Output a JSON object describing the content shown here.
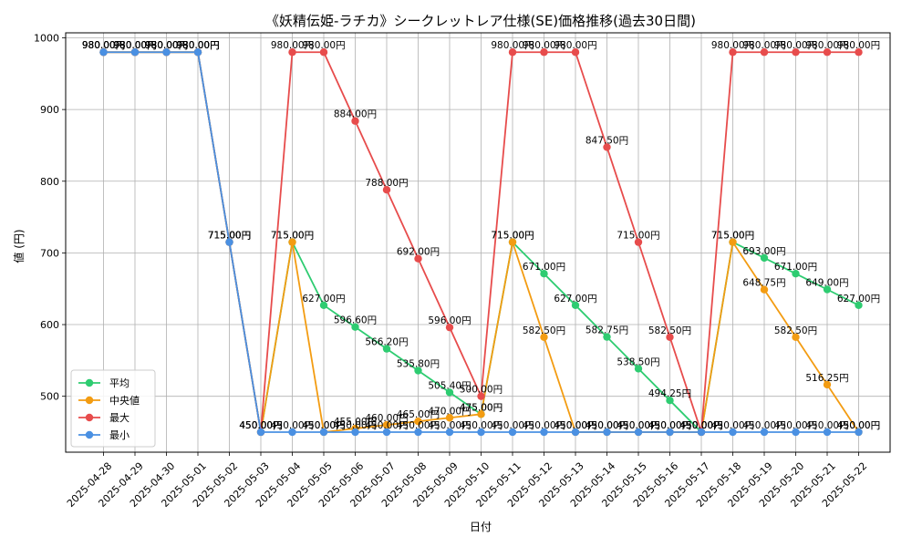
{
  "chart_data": {
    "type": "line",
    "title": "《妖精伝姫-ラチカ》シークレットレア仕様(SE)価格推移(過去30日間)",
    "xlabel": "日付",
    "ylabel": "値 (円)",
    "ylim": [
      422,
      1007
    ],
    "yticks": [
      500,
      600,
      700,
      800,
      900,
      1000
    ],
    "grid": true,
    "legend_position": "lower-left",
    "value_suffix": "円",
    "categories": [
      "2025-04-28",
      "2025-04-29",
      "2025-04-30",
      "2025-05-01",
      "2025-05-02",
      "2025-05-03",
      "2025-05-04",
      "2025-05-05",
      "2025-05-06",
      "2025-05-07",
      "2025-05-08",
      "2025-05-09",
      "2025-05-10",
      "2025-05-11",
      "2025-05-12",
      "2025-05-13",
      "2025-05-14",
      "2025-05-15",
      "2025-05-16",
      "2025-05-17",
      "2025-05-18",
      "2025-05-19",
      "2025-05-20",
      "2025-05-21",
      "2025-05-22"
    ],
    "series": [
      {
        "name": "平均",
        "color": "#2ecc71",
        "values": [
          980,
          980,
          980,
          980,
          715,
          450,
          715,
          627,
          596.6,
          566.2,
          535.8,
          505.4,
          475,
          715,
          671,
          627,
          582.75,
          538.5,
          494.25,
          450,
          715,
          693,
          671,
          649,
          627
        ]
      },
      {
        "name": "中央値",
        "color": "#f39c12",
        "values": [
          980,
          980,
          980,
          980,
          715,
          450,
          715,
          450,
          455,
          460,
          465,
          470,
          475,
          715,
          582.5,
          450,
          450,
          450,
          450,
          450,
          715,
          648.75,
          582.5,
          516.25,
          450
        ]
      },
      {
        "name": "最大",
        "color": "#e74c4c",
        "values": [
          980,
          980,
          980,
          980,
          715,
          450,
          980,
          980,
          884,
          788,
          692,
          596,
          500,
          980,
          980,
          980,
          847.5,
          715,
          582.5,
          450,
          980,
          980,
          980,
          980,
          980
        ]
      },
      {
        "name": "最小",
        "color": "#4a90e2",
        "values": [
          980,
          980,
          980,
          980,
          715,
          450,
          450,
          450,
          450,
          450,
          450,
          450,
          450,
          450,
          450,
          450,
          450,
          450,
          450,
          450,
          450,
          450,
          450,
          450,
          450
        ]
      }
    ]
  }
}
